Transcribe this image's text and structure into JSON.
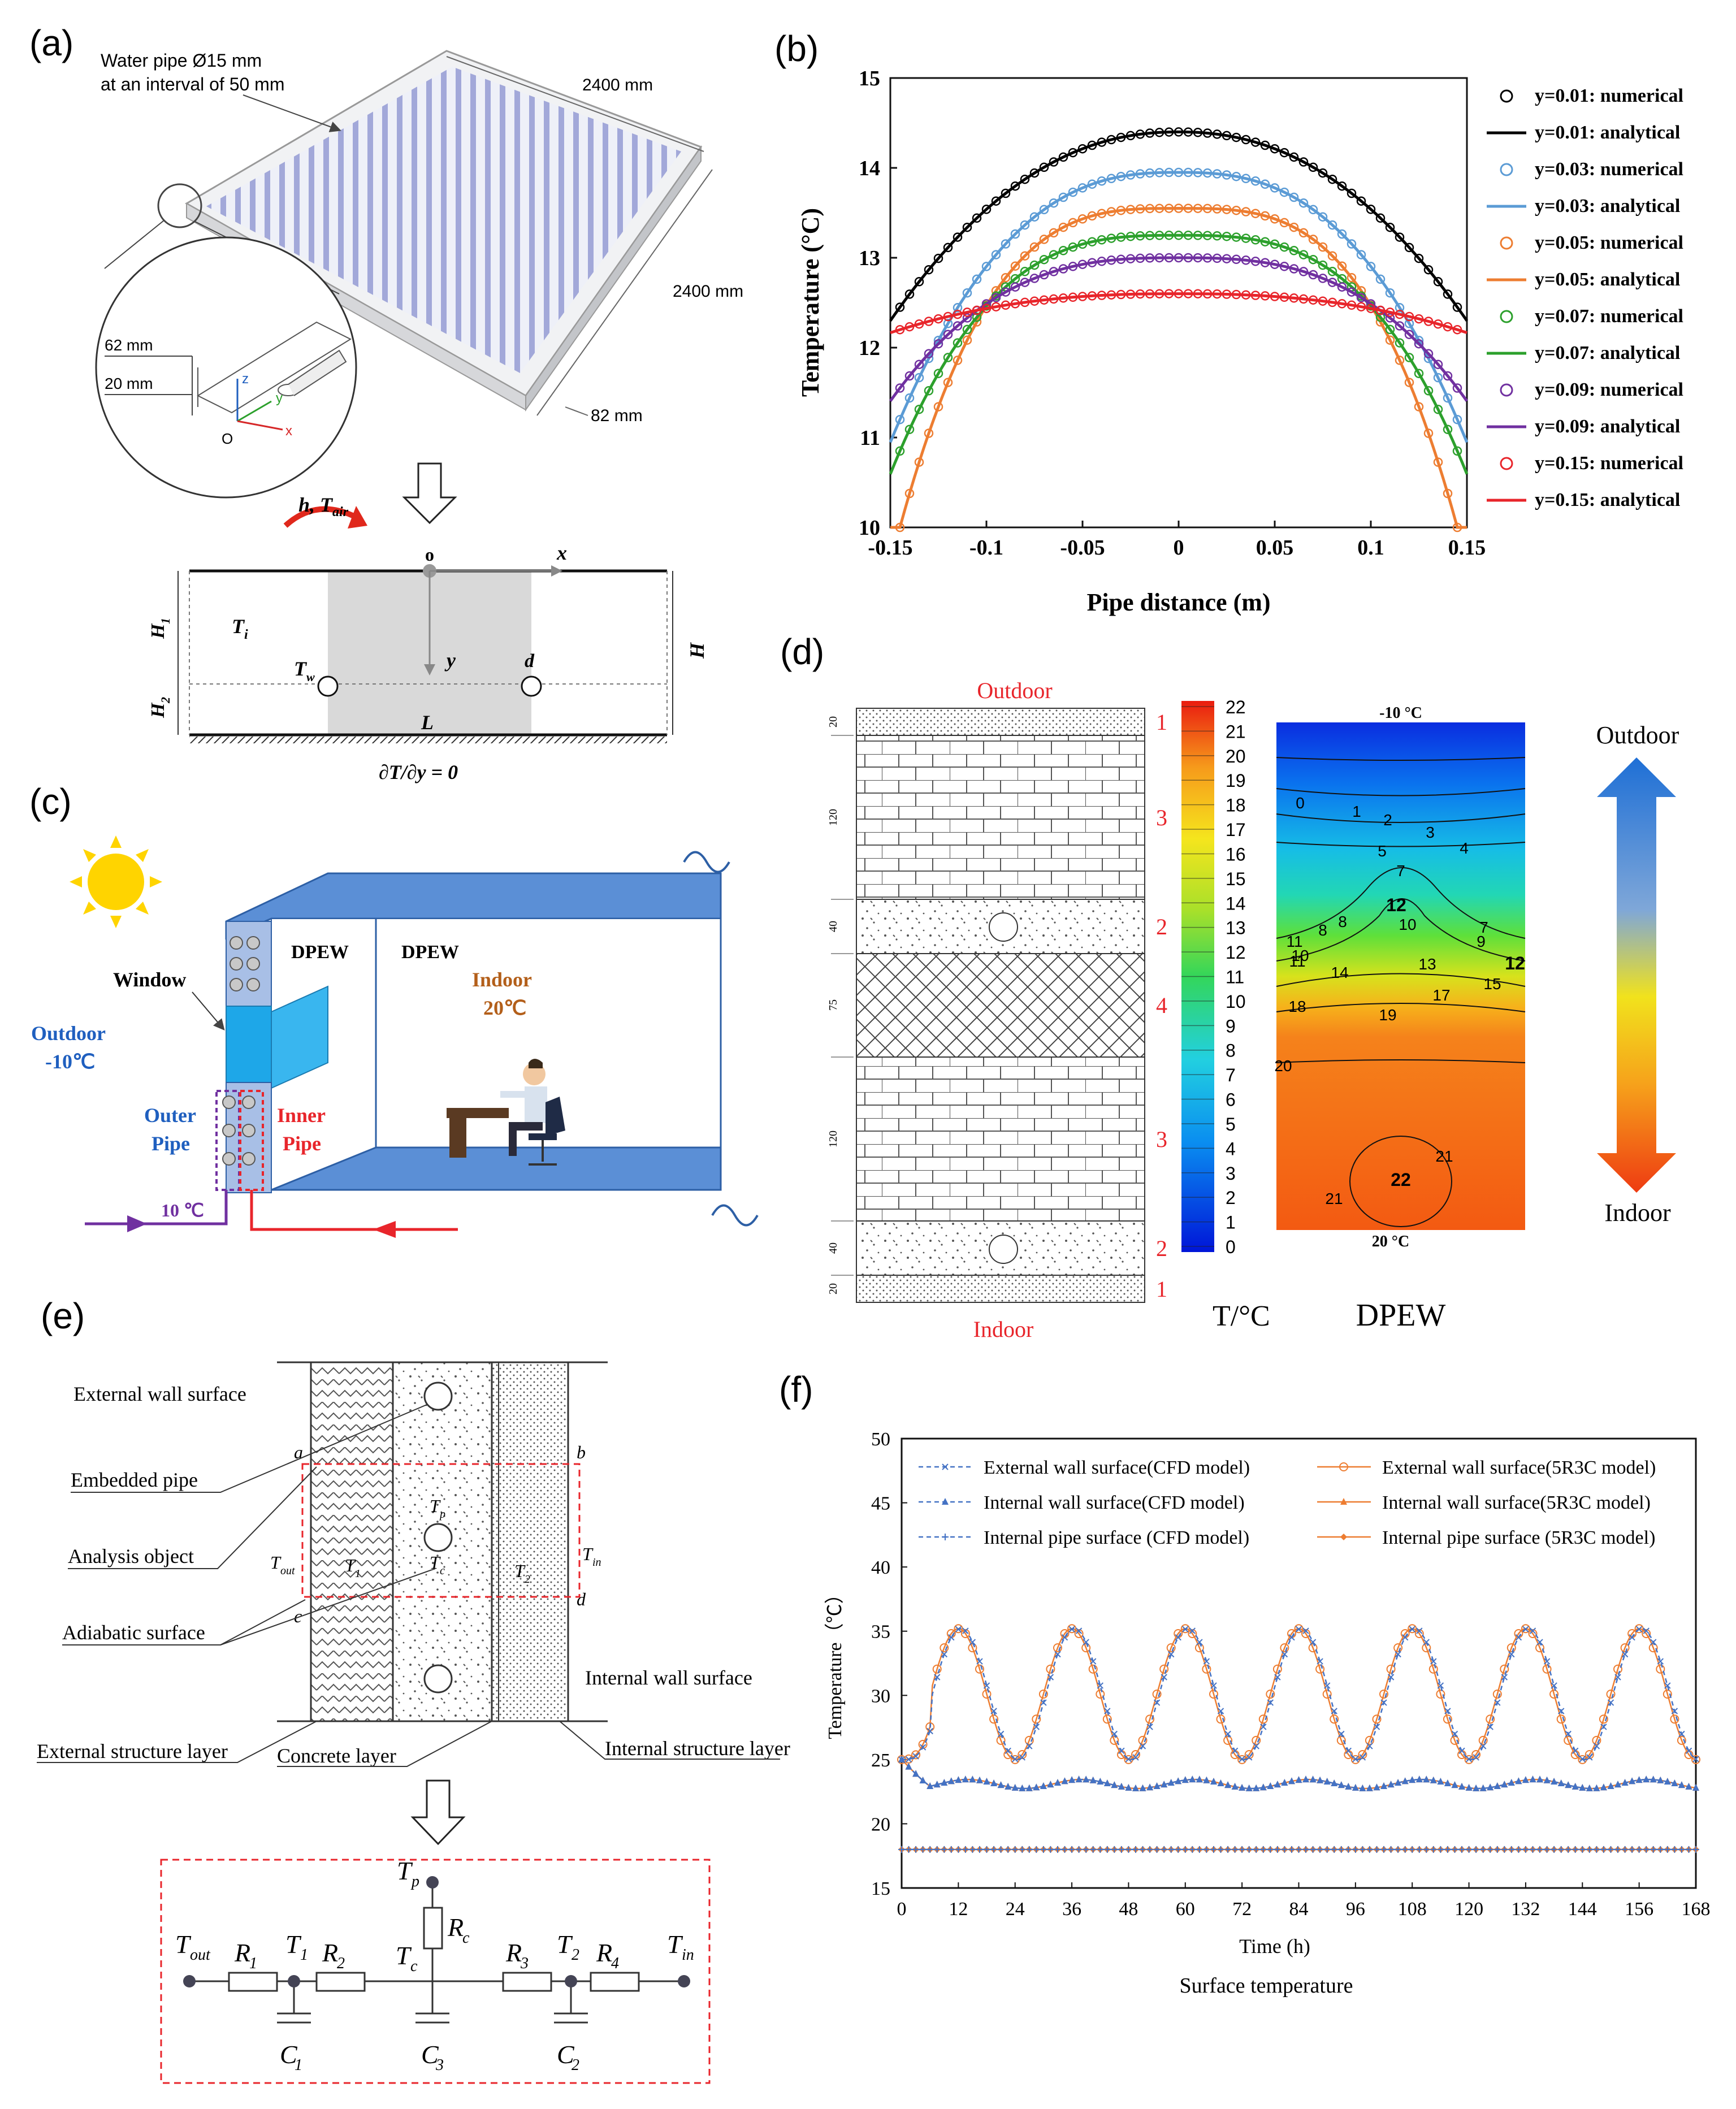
{
  "figure": {
    "labels": {
      "a": "(a)",
      "b": "(b)",
      "c": "(c)",
      "d": "(d)",
      "e": "(e)",
      "f": "(f)"
    }
  },
  "panel_a": {
    "pipe_note_1": "Water pipe Ø15 mm",
    "pipe_note_2": "at an interval of 50 mm",
    "dim_width": "2400 mm",
    "dim_depth": "2400 mm",
    "dim_thick": "82 mm",
    "dim_62": "62 mm",
    "dim_20": "20 mm",
    "axis_z": "z",
    "axis_y": "y",
    "axis_x": "x",
    "origin": "O",
    "h_label": "h",
    "tair_label": "T",
    "tair_sub": "air",
    "o_label": "o",
    "x_label": "x",
    "y_label": "y",
    "ti_label": "T",
    "ti_sub": "i",
    "tw_label": "T",
    "tw_sub": "w",
    "d_label": "d",
    "L_label": "L",
    "H_label": "H",
    "H1_label": "H",
    "H1_sub": "1",
    "H2_label": "H",
    "H2_sub": "2",
    "bc_label": "∂T/∂y = 0"
  },
  "panel_b": {
    "chart_data": {
      "type": "line",
      "xlabel": "Pipe distance (m)",
      "ylabel": "Temperature (°C)",
      "xlim": [
        -0.15,
        0.15
      ],
      "ylim": [
        10,
        15
      ],
      "xticks": [
        "-0.15",
        "-0.1",
        "-0.05",
        "0",
        "0.05",
        "0.1",
        "0.15"
      ],
      "yticks": [
        "10",
        "11",
        "12",
        "13",
        "14",
        "15"
      ],
      "series": [
        {
          "name": "y=0.01",
          "numerical_label": "y=0.01: numerical",
          "analytical_label": "y=0.01: analytical",
          "color": "#000000",
          "center": 14.4,
          "edge": 12.45,
          "p": 2.2
        },
        {
          "name": "y=0.03",
          "numerical_label": "y=0.03: numerical",
          "analytical_label": "y=0.03: analytical",
          "color": "#5b9bd5",
          "center": 13.95,
          "edge": 11.2,
          "p": 2.6
        },
        {
          "name": "y=0.05",
          "numerical_label": "y=0.05: numerical",
          "analytical_label": "y=0.05: analytical",
          "color": "#ed7d31",
          "center": 13.55,
          "edge": 10.0,
          "p": 3.2
        },
        {
          "name": "y=0.07",
          "numerical_label": "y=0.07: numerical",
          "analytical_label": "y=0.07: analytical",
          "color": "#2ca02c",
          "center": 13.25,
          "edge": 10.85,
          "p": 3.0
        },
        {
          "name": "y=0.09",
          "numerical_label": "y=0.09: numerical",
          "analytical_label": "y=0.09: analytical",
          "color": "#7030a0",
          "center": 13.0,
          "edge": 11.55,
          "p": 2.8
        },
        {
          "name": "y=0.15",
          "numerical_label": "y=0.15: numerical",
          "analytical_label": "y=0.15: analytical",
          "color": "#e8252b",
          "center": 12.6,
          "edge": 12.2,
          "p": 2.4
        }
      ]
    }
  },
  "panel_c": {
    "dpew1": "DPEW",
    "dpew2": "DPEW",
    "window": "Window",
    "outdoor": "Outdoor",
    "outdoor_temp": "-10℃",
    "indoor": "Indoor",
    "indoor_temp": "20℃",
    "outer_pipe_1": "Outer",
    "outer_pipe_2": "Pipe",
    "inner_pipe_1": "Inner",
    "inner_pipe_2": "Pipe",
    "supply_temp": "10 ℃",
    "colors": {
      "wall": "#5b8fd6",
      "window": "#1ea7e8",
      "outer": "#7030a0",
      "inner": "#e8252b"
    }
  },
  "panel_d": {
    "outdoor": "Outdoor",
    "indoor": "Indoor",
    "layer_numbers": [
      "1",
      "3",
      "2",
      "4",
      "3",
      "2",
      "1"
    ],
    "thicknesses": [
      "20",
      "120",
      "40",
      "75",
      "120",
      "40",
      "20"
    ],
    "colorbar_ticks": [
      "22",
      "21",
      "20",
      "19",
      "18",
      "17",
      "16",
      "15",
      "14",
      "13",
      "12",
      "11",
      "10",
      "9",
      "8",
      "7",
      "6",
      "5",
      "4",
      "3",
      "2",
      "1",
      "0"
    ],
    "colorbar_unit": "T/°C",
    "contour_title": "DPEW",
    "top_temp": "-10 °C",
    "bottom_temp": "20 °C",
    "arrow_top": "Outdoor",
    "arrow_bottom": "Indoor",
    "contour_labels": [
      "0",
      "1",
      "2",
      "3",
      "4",
      "5",
      "7",
      "12",
      "10",
      "8",
      "8",
      "7",
      "9",
      "11",
      "10",
      "11",
      "13",
      "12",
      "14",
      "15",
      "17",
      "18",
      "19",
      "20",
      "21",
      "22",
      "21"
    ]
  },
  "panel_e": {
    "ext_wall": "External wall surface",
    "pipe": "Embedded pipe",
    "analysis": "Analysis object",
    "adiabatic": "Adiabatic surface",
    "ext_layer": "External structure layer",
    "concrete": "Concrete layer",
    "int_layer": "Internal structure layer",
    "int_wall": "Internal wall surface",
    "a": "a",
    "b": "b",
    "c": "c",
    "d": "d",
    "Tout": "T",
    "Tout_sub": "out",
    "T1": "T",
    "T1_sub": "1",
    "Tc": "T",
    "Tc_sub": "c",
    "Tp": "T",
    "Tp_sub": "p",
    "T2": "T",
    "T2_sub": "2",
    "Tin": "T",
    "Tin_sub": "in",
    "circuit": {
      "Tout": "T",
      "Tout_sub": "out",
      "R1": "R",
      "R1_sub": "1",
      "T1": "T",
      "T1_sub": "1",
      "R2": "R",
      "R2_sub": "2",
      "Tp": "T",
      "Tp_sub": "p",
      "Rc": "R",
      "Rc_sub": "c",
      "Tc": "T",
      "Tc_sub": "c",
      "R3": "R",
      "R3_sub": "3",
      "T2": "T",
      "T2_sub": "2",
      "R4": "R",
      "R4_sub": "4",
      "Tin": "T",
      "Tin_sub": "in",
      "C1": "C",
      "C1_sub": "1",
      "C3": "C",
      "C3_sub": "3",
      "C2": "C",
      "C2_sub": "2"
    }
  },
  "panel_f": {
    "chart_data": {
      "type": "line",
      "title": "Surface temperature",
      "xlabel": "Time (h)",
      "ylabel": "Temperature（℃）",
      "xlim": [
        0,
        168
      ],
      "ylim": [
        15,
        50
      ],
      "xticks": [
        "0",
        "12",
        "24",
        "36",
        "48",
        "60",
        "72",
        "84",
        "96",
        "108",
        "120",
        "132",
        "144",
        "156",
        "168"
      ],
      "yticks": [
        "15",
        "20",
        "25",
        "30",
        "35",
        "40",
        "45",
        "50"
      ],
      "period_h": 24,
      "series": [
        {
          "name": "External wall surface(CFD model)",
          "color": "#4472c4",
          "style": "dashed",
          "marker": "x",
          "mean": 30.1,
          "amplitude": 5.1,
          "peak_h": 12.5
        },
        {
          "name": "Internal wall surface(CFD model)",
          "color": "#4472c4",
          "style": "dashed",
          "marker": "triangle",
          "mean": 23.1,
          "amplitude": 0.35,
          "peak_h": 14
        },
        {
          "name": "Internal pipe surface (CFD model)",
          "color": "#4472c4",
          "style": "dashed",
          "marker": "plus",
          "mean": 18.0,
          "amplitude": 0.0,
          "peak_h": 0
        },
        {
          "name": "External wall surface(5R3C model)",
          "color": "#ed7d31",
          "style": "solid",
          "marker": "circle",
          "mean": 30.1,
          "amplitude": 5.1,
          "peak_h": 12
        },
        {
          "name": "Internal wall surface(5R3C model)",
          "color": "#ed7d31",
          "style": "solid",
          "marker": "triangle",
          "mean": 23.1,
          "amplitude": 0.35,
          "peak_h": 14
        },
        {
          "name": "Internal pipe surface (5R3C model)",
          "color": "#ed7d31",
          "style": "solid",
          "marker": "diamond",
          "mean": 18.0,
          "amplitude": 0.0,
          "peak_h": 0
        }
      ]
    }
  }
}
